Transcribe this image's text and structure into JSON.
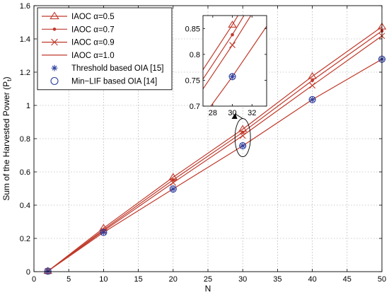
{
  "chart_data": {
    "type": "line",
    "title": "",
    "xlabel": "N",
    "ylabel": "Sum of the Harvested Power (P_t)",
    "ylabel_main": "Sum of the Harvested Power (P",
    "ylabel_sub": "t",
    "ylabel_close": ")",
    "xlim": [
      0,
      50
    ],
    "ylim": [
      0,
      1.6
    ],
    "x_ticks": [
      0,
      5,
      10,
      15,
      20,
      25,
      30,
      35,
      40,
      45,
      50
    ],
    "x_tick_labels": [
      "0",
      "5",
      "10",
      "15",
      "20",
      "25",
      "30",
      "35",
      "40",
      "45",
      "50"
    ],
    "y_ticks": [
      0,
      0.2,
      0.4,
      0.6,
      0.8,
      1.0,
      1.2,
      1.4,
      1.6
    ],
    "y_tick_labels": [
      "0",
      "0.2",
      "0.4",
      "0.6",
      "0.8",
      "1",
      "1.2",
      "1.4",
      "1.6"
    ],
    "grid": true,
    "legend_position": "top-left",
    "x": [
      2,
      10,
      20,
      30,
      40,
      50
    ],
    "series": [
      {
        "name": "IAOC α=0.5",
        "marker": "triangle",
        "color": "#c0392b",
        "values": [
          0.003,
          0.262,
          0.568,
          0.857,
          1.175,
          1.473
        ]
      },
      {
        "name": "IAOC α=0.7",
        "marker": "dot",
        "color": "#c0392b",
        "values": [
          0.003,
          0.252,
          0.552,
          0.838,
          1.15,
          1.448
        ]
      },
      {
        "name": "IAOC α=0.9",
        "marker": "x",
        "color": "#c0392b",
        "values": [
          0.003,
          0.245,
          0.535,
          0.818,
          1.12,
          1.418
        ]
      },
      {
        "name": "IAOC α=1.0",
        "marker": "none",
        "color": "#c0392b",
        "values": [
          0.003,
          0.236,
          0.498,
          0.757,
          1.035,
          1.278
        ]
      },
      {
        "name": "Threshold based OIA [15]",
        "marker": "asterisk",
        "color": "#2c3e9e",
        "line": false,
        "values": [
          0.003,
          0.236,
          0.497,
          0.757,
          1.035,
          1.278
        ]
      },
      {
        "name": "Min−LIF based OIA [14]",
        "marker": "circle",
        "color": "#2c3e9e",
        "line": false,
        "values": [
          0.003,
          0.236,
          0.497,
          0.757,
          1.035,
          1.278
        ]
      }
    ],
    "inset": {
      "xlim": [
        27,
        33.5
      ],
      "ylim": [
        0.7,
        0.875
      ],
      "x_ticks": [
        28,
        30,
        32
      ],
      "x_tick_labels": [
        "28",
        "30",
        "32"
      ],
      "y_ticks": [
        0.7,
        0.75,
        0.8,
        0.85
      ],
      "y_tick_labels": [
        "0.7",
        "0.75",
        "0.8",
        "0.85"
      ],
      "highlighted_x": 30
    }
  }
}
